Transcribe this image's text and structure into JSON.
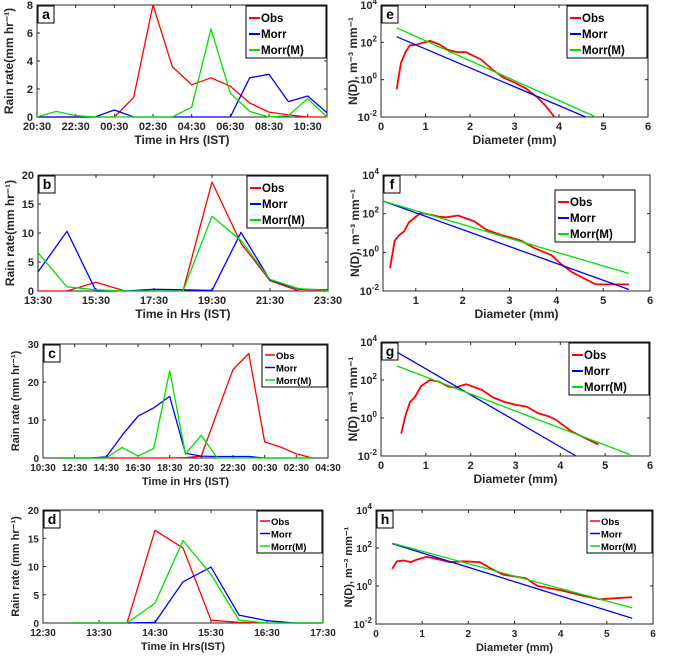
{
  "colors": {
    "obs": "#ff0000",
    "morr": "#0000ff",
    "morr_m": "#00e000",
    "axis": "#262626"
  },
  "chart_data": [
    {
      "id": "a",
      "type": "line",
      "letter": "a",
      "xlabel": "Time in Hrs (IST)",
      "ylabel": "Rain rate(mm hr⁻¹)",
      "x": [
        "20:30",
        "21:30",
        "22:30",
        "23:30",
        "00:30",
        "01:30",
        "02:30",
        "03:30",
        "04:30",
        "05:30",
        "06:30",
        "07:30",
        "08:30",
        "09:30",
        "10:30",
        "11:30"
      ],
      "xticks": [
        "20:30",
        "22:30",
        "00:30",
        "02:30",
        "04:30",
        "06:30",
        "08:30",
        "10:30"
      ],
      "xlim_index": [
        0,
        15
      ],
      "xtick_index": [
        0,
        2,
        4,
        6,
        8,
        10,
        12,
        14
      ],
      "ylim": [
        0,
        8
      ],
      "yticks": [
        0,
        2,
        4,
        6,
        8
      ],
      "legend": [
        "Obs",
        "Morr",
        "Morr(M)"
      ],
      "legend_placement": "top-right",
      "series": [
        {
          "name": "Obs",
          "values": [
            0,
            0,
            0,
            0,
            0,
            1.4,
            8.0,
            3.6,
            2.3,
            2.8,
            2.2,
            1.0,
            0.35,
            0.15,
            0,
            0
          ]
        },
        {
          "name": "Morr",
          "values": [
            0,
            0,
            0,
            0,
            0.5,
            0,
            0,
            0,
            0,
            0,
            0,
            2.8,
            3.05,
            1.1,
            1.5,
            0.3
          ]
        },
        {
          "name": "Morr(M)",
          "values": [
            0,
            0.4,
            0.1,
            0,
            0,
            0,
            0,
            0,
            0.7,
            6.3,
            1.7,
            0.4,
            0,
            0.1,
            1.3,
            0
          ]
        }
      ]
    },
    {
      "id": "b",
      "type": "line",
      "letter": "b",
      "xlabel": "Time in Hrs (IST)",
      "ylabel": "Rain rate(mm hr⁻¹)",
      "x": [
        "13:30",
        "14:30",
        "15:30",
        "16:30",
        "17:30",
        "18:30",
        "19:30",
        "20:30",
        "21:30",
        "22:30",
        "23:30"
      ],
      "xticks": [
        "13:30",
        "15:30",
        "17:30",
        "19:30",
        "21:30",
        "23:30"
      ],
      "xlim_index": [
        0,
        10
      ],
      "xtick_index": [
        0,
        2,
        4,
        6,
        8,
        10
      ],
      "ylim": [
        0,
        20
      ],
      "yticks": [
        0,
        5,
        10,
        15,
        20
      ],
      "legend": [
        "Obs",
        "Morr",
        "Morr(M)"
      ],
      "legend_placement": "top-right",
      "series": [
        {
          "name": "Obs",
          "values": [
            0,
            0,
            1.5,
            0,
            0,
            0,
            18.8,
            8.2,
            1.8,
            0,
            0
          ]
        },
        {
          "name": "Morr",
          "values": [
            3.3,
            10.3,
            0,
            0,
            0.3,
            0.2,
            0.1,
            10.1,
            1.9,
            0.3,
            0.2
          ]
        },
        {
          "name": "Morr(M)",
          "values": [
            6.6,
            0.7,
            0.2,
            0,
            0,
            0,
            12.9,
            8.7,
            2.0,
            0.4,
            0.1
          ]
        }
      ]
    },
    {
      "id": "c",
      "type": "line",
      "letter": "c",
      "xlabel": "Time in Hrs (IST)",
      "ylabel": "Rain rate (mm hr⁻¹)",
      "x": [
        "10:30",
        "11:30",
        "12:30",
        "13:30",
        "14:30",
        "15:30",
        "16:30",
        "17:30",
        "18:30",
        "19:30",
        "20:30",
        "21:30",
        "22:30",
        "23:30",
        "00:30",
        "01:30",
        "02:30",
        "03:30",
        "04:30"
      ],
      "xticks": [
        "10:30",
        "12:30",
        "14:30",
        "16:30",
        "18:30",
        "20:30",
        "22:30",
        "00:30",
        "02:30",
        "04:30"
      ],
      "xlim_index": [
        0,
        18
      ],
      "xtick_index": [
        0,
        2,
        4,
        6,
        8,
        10,
        12,
        14,
        16,
        18
      ],
      "ylim": [
        0,
        30
      ],
      "yticks": [
        0,
        10,
        20,
        30
      ],
      "legend": [
        "Obs",
        "Morr",
        "Morr(M)"
      ],
      "legend_placement": "top-right",
      "series": [
        {
          "name": "Obs",
          "start_index": 1,
          "values": [
            0,
            0,
            0,
            0,
            0,
            0,
            0,
            0,
            0.1,
            0.5,
            12.0,
            23.3,
            27.5,
            4.2,
            2.9,
            1.1,
            0
          ]
        },
        {
          "name": "Morr",
          "start_index": 1,
          "values": [
            0,
            0,
            0,
            0.3,
            6.0,
            11.0,
            13.2,
            16.2,
            1.2,
            0.5,
            0.4,
            0.4,
            0.4,
            0,
            0,
            0,
            0
          ]
        },
        {
          "name": "Morr(M)",
          "start_index": 1,
          "values": [
            0,
            0,
            0,
            0,
            2.8,
            0.5,
            2.5,
            23.0,
            1.0,
            6.0,
            0,
            0,
            0,
            0,
            0,
            0,
            0
          ]
        }
      ]
    },
    {
      "id": "d",
      "type": "line",
      "letter": "d",
      "xlabel": "Time in Hrs(IST)",
      "ylabel": "Rain rate (mm hr⁻¹)",
      "x": [
        "12:30",
        "13:00",
        "13:30",
        "14:00",
        "14:30",
        "15:00",
        "15:30",
        "16:00",
        "16:30",
        "17:00",
        "17:30"
      ],
      "xticks": [
        "12:30",
        "13:30",
        "14:30",
        "15:30",
        "16:30",
        "17:30"
      ],
      "xlim_index": [
        0,
        10
      ],
      "xtick_index": [
        0,
        2,
        4,
        6,
        8,
        10
      ],
      "ylim": [
        0,
        20
      ],
      "yticks": [
        0,
        5,
        10,
        15,
        20
      ],
      "legend": [
        "Obs",
        "Morr",
        "Morr(M)"
      ],
      "legend_placement": "top-right",
      "series": [
        {
          "name": "Obs",
          "start_index": 1,
          "values": [
            0,
            0,
            0,
            16.4,
            13.3,
            0.5,
            0.1,
            0,
            0,
            0
          ]
        },
        {
          "name": "Morr",
          "start_index": 1,
          "values": [
            0,
            0,
            0,
            0.1,
            7.3,
            9.9,
            1.4,
            0.4,
            0,
            0
          ]
        },
        {
          "name": "Morr(M)",
          "start_index": 1,
          "values": [
            0,
            0,
            0,
            3.5,
            14.6,
            8.6,
            0.5,
            0,
            0,
            0
          ]
        }
      ]
    },
    {
      "id": "e",
      "type": "line",
      "letter": "e",
      "yscale": "log",
      "xlabel": "Diameter (mm)",
      "ylabel": "N(D), m⁻³ mm⁻¹",
      "xlim": [
        0,
        6
      ],
      "xticks": [
        0,
        1,
        2,
        3,
        4,
        5,
        6
      ],
      "ylim": [
        0.01,
        10000
      ],
      "yticks_exp": [
        -2,
        0,
        2,
        4
      ],
      "legend": [
        "Obs",
        "Morr",
        "Morr(M)"
      ],
      "legend_placement": "top-right",
      "series": [
        {
          "name": "Obs",
          "x": [
            0.35,
            0.45,
            0.55,
            0.65,
            0.75,
            0.9,
            1.1,
            1.3,
            1.5,
            1.7,
            1.9,
            2.25,
            2.5,
            2.75,
            3.0,
            3.25,
            3.5,
            3.7,
            3.9
          ],
          "y": [
            0.3,
            8,
            30,
            70,
            70,
            90,
            120,
            80,
            40,
            30,
            30,
            12,
            3.5,
            1.3,
            0.7,
            0.35,
            0.12,
            0.04,
            0.01
          ]
        },
        {
          "name": "Morr",
          "x": [
            0.35,
            4.6
          ],
          "y": [
            200,
            0.01
          ]
        },
        {
          "name": "Morr(M)",
          "x": [
            0.35,
            4.83
          ],
          "y": [
            600,
            0.01
          ]
        }
      ]
    },
    {
      "id": "f",
      "type": "line",
      "letter": "f",
      "yscale": "log",
      "xlabel": "Diameter (mm)",
      "ylabel": "N(D), m⁻³ mm⁻¹",
      "xlim": [
        0.3,
        6
      ],
      "xticks": [
        1,
        2,
        3,
        4,
        5,
        6
      ],
      "ylim": [
        0.01,
        10000
      ],
      "yticks_exp": [
        -2,
        0,
        2,
        4
      ],
      "legend": [
        "Obs",
        "Morr",
        "Morr(M)"
      ],
      "legend_placement": "top-right",
      "series": [
        {
          "name": "Obs",
          "x": [
            0.45,
            0.55,
            0.65,
            0.75,
            0.85,
            1.1,
            1.3,
            1.5,
            1.65,
            1.9,
            2.25,
            2.5,
            2.75,
            3.0,
            3.25,
            3.5,
            3.75,
            3.9,
            4.1,
            4.35,
            4.55,
            4.85,
            5.55
          ],
          "y": [
            0.15,
            4,
            8,
            12,
            35,
            110,
            90,
            70,
            65,
            80,
            40,
            15,
            9,
            6,
            4,
            1.8,
            1.0,
            0.7,
            0.25,
            0.09,
            0.05,
            0.022,
            0.022
          ]
        },
        {
          "name": "Morr",
          "x": [
            0.3,
            5.55
          ],
          "y": [
            450,
            0.012
          ]
        },
        {
          "name": "Morr(M)",
          "x": [
            0.3,
            5.55
          ],
          "y": [
            450,
            0.08
          ]
        }
      ]
    },
    {
      "id": "g",
      "type": "line",
      "letter": "g",
      "yscale": "log",
      "xlabel": "Diameter (mm)",
      "ylabel": "N(D) m⁻³ mm⁻¹",
      "xlim": [
        0,
        6
      ],
      "xticks": [
        0,
        1,
        2,
        3,
        4,
        5,
        6
      ],
      "ylim": [
        0.01,
        10000
      ],
      "yticks_exp": [
        -2,
        0,
        2,
        4
      ],
      "legend": [
        "Obs",
        "Morr",
        "Morr(M)"
      ],
      "legend_placement": "top-right",
      "series": [
        {
          "name": "Obs",
          "x": [
            0.45,
            0.55,
            0.65,
            0.75,
            0.9,
            1.1,
            1.3,
            1.5,
            1.65,
            1.9,
            2.25,
            2.5,
            2.75,
            3.0,
            3.25,
            3.5,
            3.75,
            3.9,
            4.25,
            4.5,
            4.85
          ],
          "y": [
            0.15,
            1.5,
            7,
            12,
            50,
            100,
            80,
            45,
            40,
            60,
            30,
            12,
            7,
            5,
            4,
            1.8,
            1.2,
            0.8,
            0.2,
            0.1,
            0.04
          ]
        },
        {
          "name": "Morr",
          "x": [
            0.35,
            4.35
          ],
          "y": [
            3000,
            0.01
          ]
        },
        {
          "name": "Morr(M)",
          "x": [
            0.35,
            5.55
          ],
          "y": [
            550,
            0.012
          ]
        }
      ]
    },
    {
      "id": "h",
      "type": "line",
      "letter": "h",
      "yscale": "log",
      "xlabel": "Diameter (mm)",
      "ylabel": "N(D), m⁻³ mm⁻¹",
      "xlim": [
        0,
        6
      ],
      "xticks": [
        0,
        1,
        2,
        3,
        4,
        5,
        6
      ],
      "ylim": [
        0.01,
        10000
      ],
      "yticks_exp": [
        -2,
        0,
        2,
        4
      ],
      "legend": [
        "Obs",
        "Morr",
        "Morr(M)"
      ],
      "legend_placement": "top-right",
      "series": [
        {
          "name": "Obs",
          "x": [
            0.35,
            0.45,
            0.6,
            0.75,
            0.9,
            1.1,
            1.35,
            1.6,
            1.9,
            2.25,
            2.5,
            2.75,
            3.0,
            3.25,
            3.5,
            4.0,
            4.5,
            4.85,
            5.55
          ],
          "y": [
            8,
            20,
            22,
            18,
            25,
            35,
            25,
            18,
            20,
            18,
            8,
            4,
            3.2,
            2.5,
            1.0,
            0.6,
            0.3,
            0.2,
            0.26
          ]
        },
        {
          "name": "Morr",
          "x": [
            0.35,
            5.55
          ],
          "y": [
            170,
            0.02
          ]
        },
        {
          "name": "Morr(M)",
          "x": [
            0.35,
            5.55
          ],
          "y": [
            180,
            0.07
          ]
        }
      ]
    }
  ]
}
